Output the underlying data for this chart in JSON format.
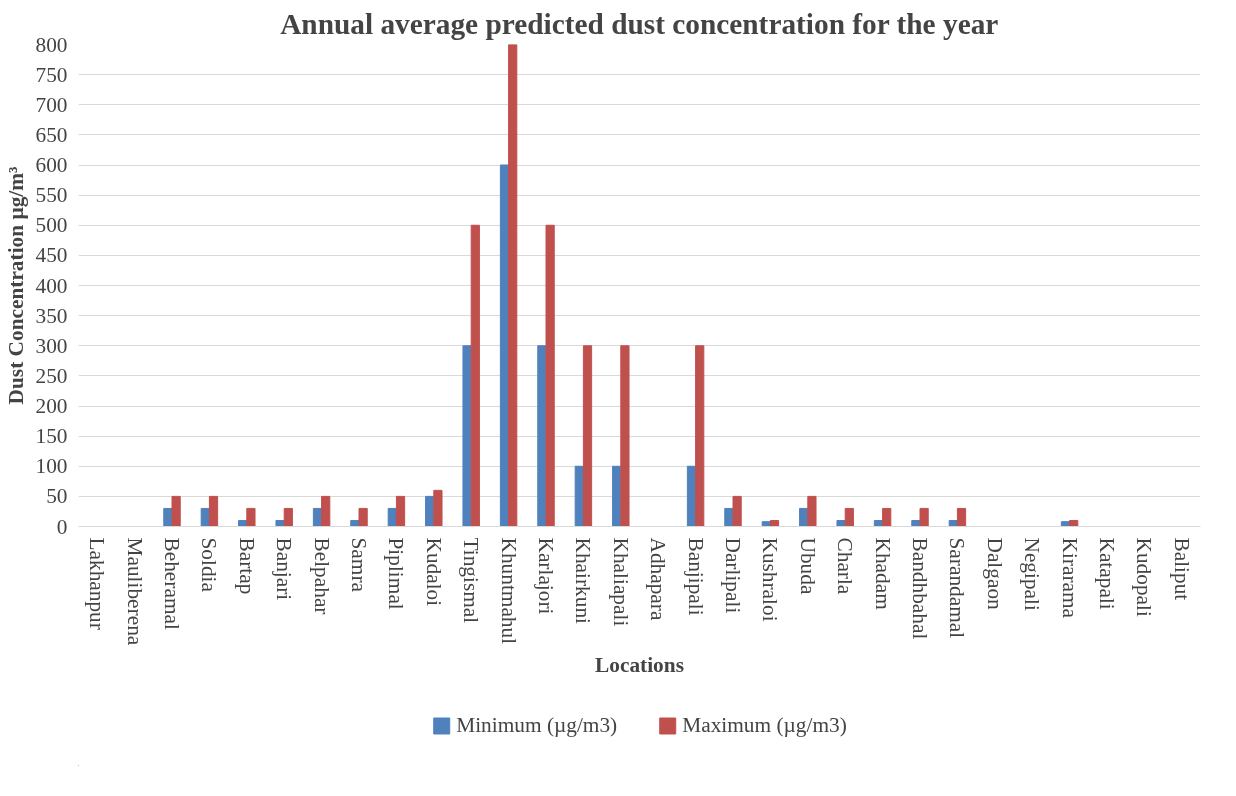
{
  "chart_data": {
    "type": "bar",
    "title": "Annual average predicted dust concentration for the year",
    "xlabel": "Locations",
    "ylabel": "Dust Concentration µg/m³",
    "categories": [
      "Lakhanpur",
      "Mauliberena",
      "Beheramal",
      "Soldia",
      "Bartap",
      "Banjari",
      "Belpahar",
      "Samra",
      "Piplimal",
      "Kudaloi",
      "Tingismal",
      "Khuntmahul",
      "Karlajori",
      "Khairkuni",
      "Khaliapali",
      "Adhapara",
      "Banjipali",
      "Darlipali",
      "Kushraloi",
      "Ubuda",
      "Charla",
      "Khadam",
      "Bandhbahal",
      "Sarandamal",
      "Dalgaon",
      "Negipali",
      "Kirarama",
      "Katapali",
      "Kudopali",
      "Baliput"
    ],
    "series": [
      {
        "name": "Minimum (µg/m3)",
        "color": "#4f81bd",
        "values": [
          0,
          0,
          30,
          30,
          10,
          10,
          30,
          10,
          30,
          50,
          300,
          600,
          300,
          100,
          100,
          0,
          100,
          30,
          8,
          30,
          10,
          10,
          10,
          10,
          0,
          0,
          8,
          0,
          0,
          0
        ]
      },
      {
        "name": "Maximum (µg/m3)",
        "color": "#c0504d",
        "values": [
          0,
          0,
          50,
          50,
          30,
          30,
          50,
          30,
          50,
          60,
          500,
          800,
          500,
          300,
          300,
          0,
          300,
          50,
          10,
          50,
          30,
          30,
          30,
          30,
          0,
          0,
          10,
          0,
          0,
          0
        ]
      }
    ],
    "ylim": [
      0,
      800
    ],
    "yticks": [
      0,
      50,
      100,
      150,
      200,
      250,
      300,
      350,
      400,
      450,
      500,
      550,
      600,
      650,
      700,
      750,
      800
    ],
    "grid": "y",
    "legend": "bottom"
  }
}
